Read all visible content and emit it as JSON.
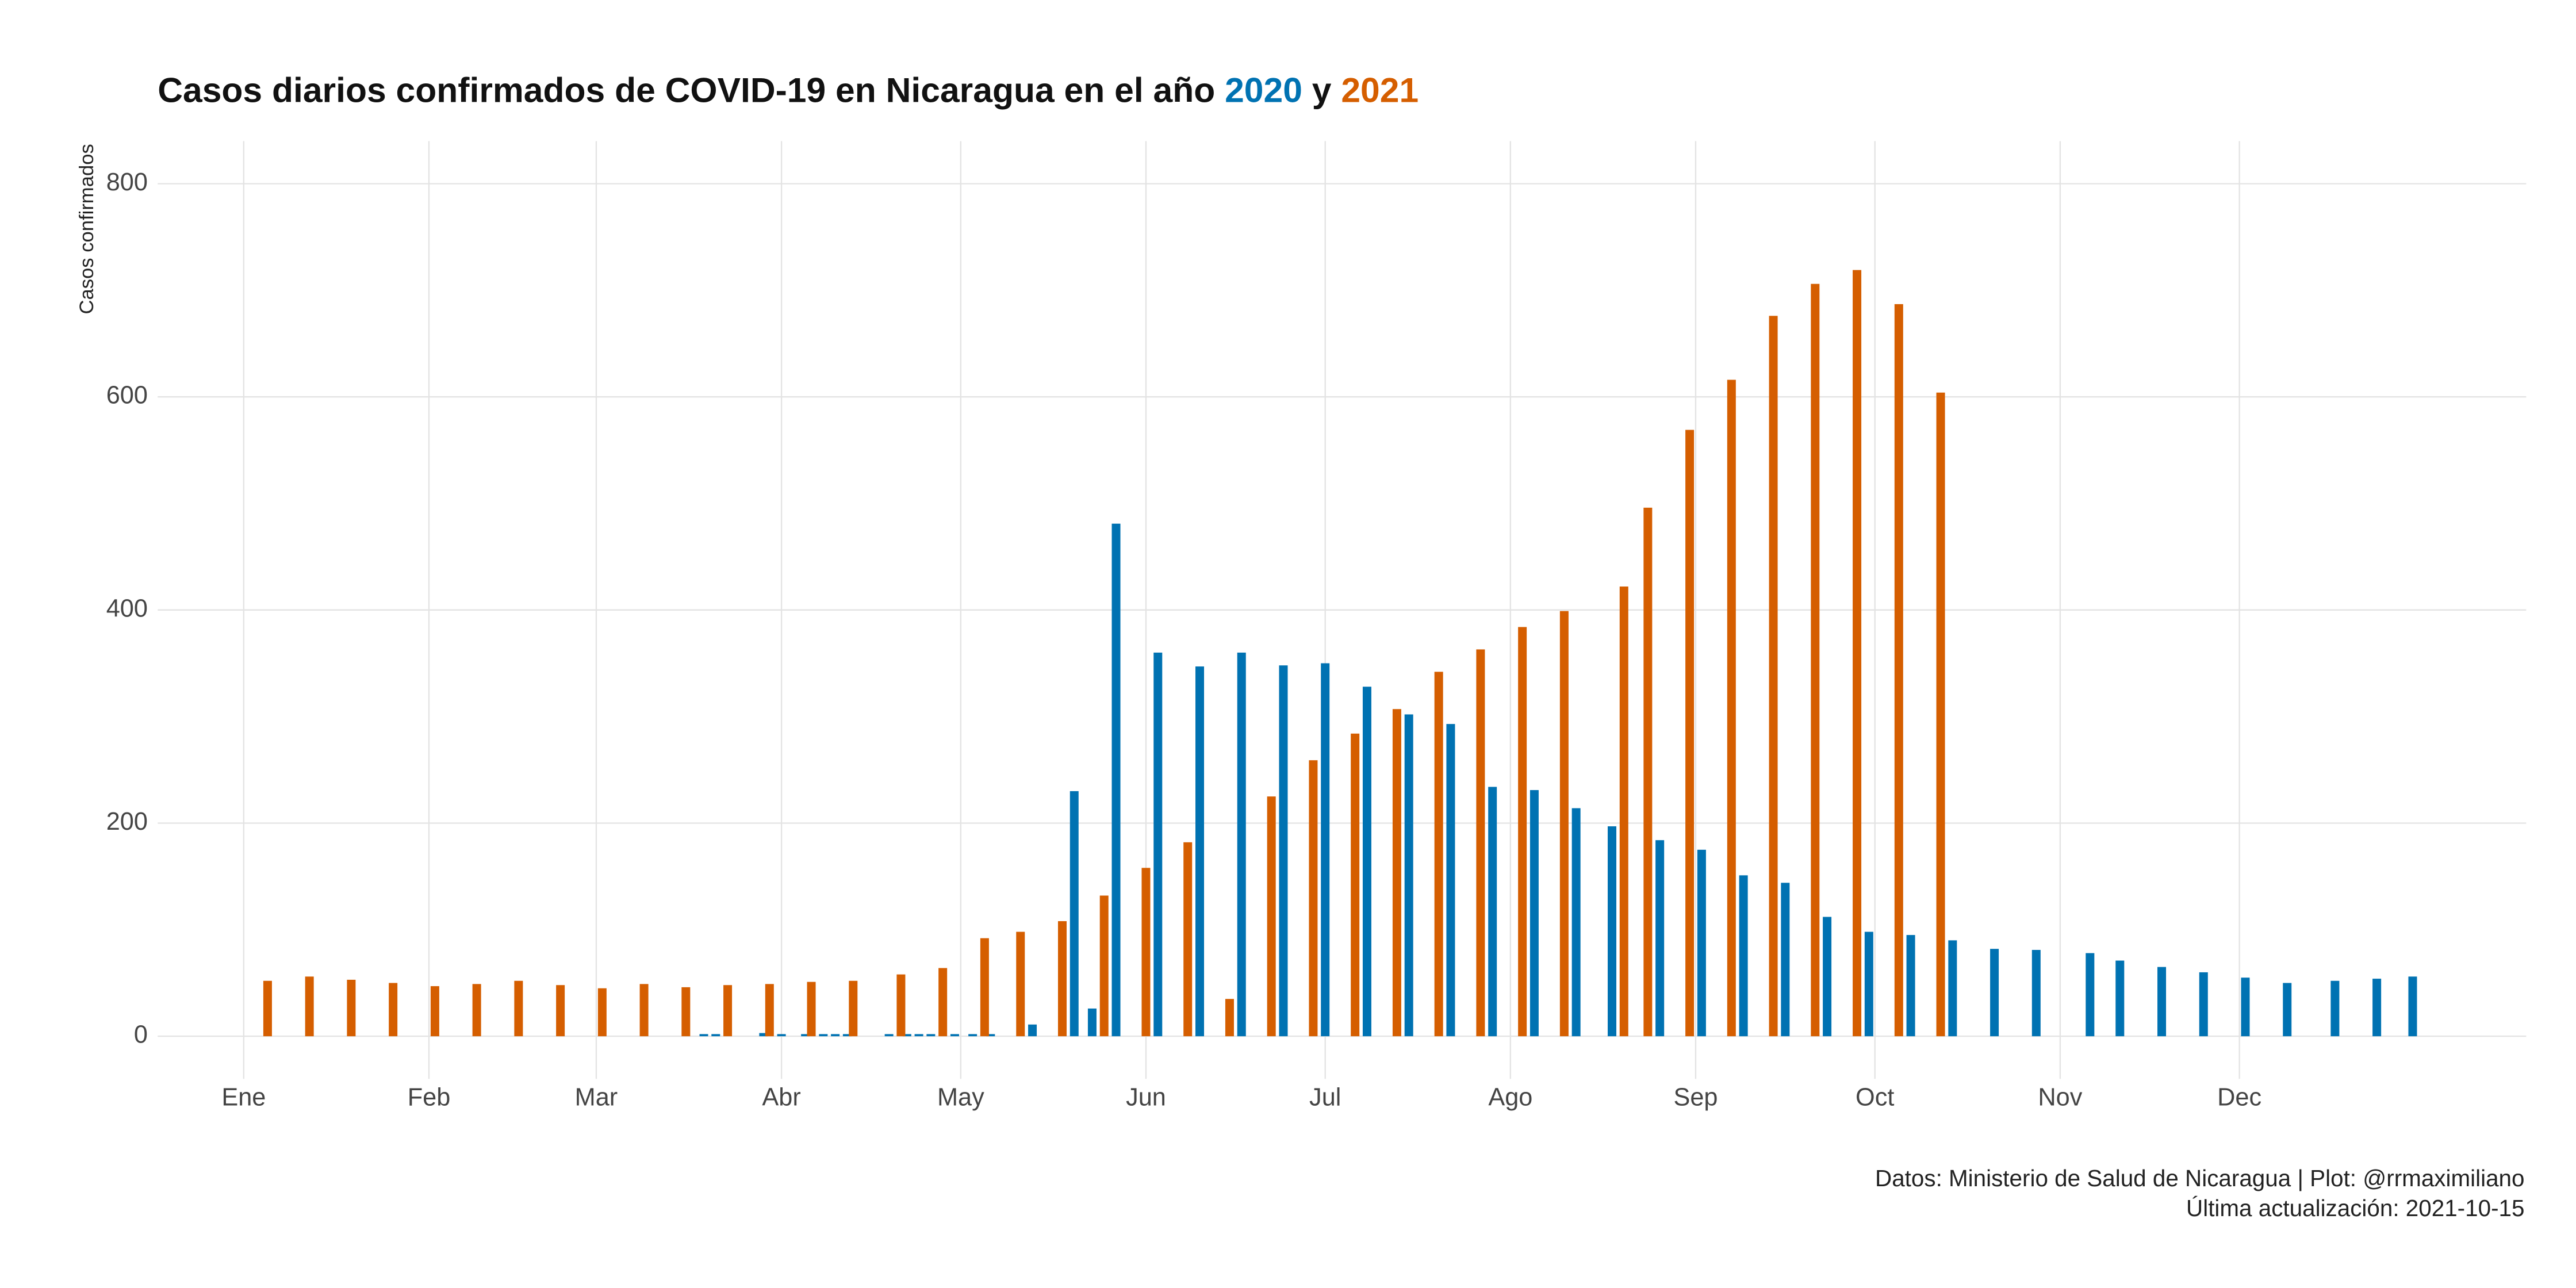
{
  "chart_data": {
    "type": "bar",
    "title": "Casos diarios confirmados de COVID-19 en Nicaragua en el año",
    "title_joiner": "y",
    "ylabel": "Casos confirmados",
    "caption": [
      "Datos: Ministerio de Salud de Nicaragua | Plot: @rrmaximiliano",
      "Última actualización: 2021-10-15"
    ],
    "xlim": [
      -14.4,
      382
    ],
    "xticks": [
      {
        "value": 0,
        "label": "Ene"
      },
      {
        "value": 31,
        "label": "Feb"
      },
      {
        "value": 59,
        "label": "Mar"
      },
      {
        "value": 90,
        "label": "Abr"
      },
      {
        "value": 120,
        "label": "May"
      },
      {
        "value": 151,
        "label": "Jun"
      },
      {
        "value": 181,
        "label": "Jul"
      },
      {
        "value": 212,
        "label": "Ago"
      },
      {
        "value": 243,
        "label": "Sep"
      },
      {
        "value": 273,
        "label": "Oct"
      },
      {
        "value": 304,
        "label": "Nov"
      },
      {
        "value": 334,
        "label": "Dec"
      }
    ],
    "ylim": [
      -40,
      840
    ],
    "yticks": [
      0,
      200,
      400,
      600,
      800
    ],
    "grid": true,
    "series": [
      {
        "name": "2020",
        "color": "#0072b2",
        "x": [
          77,
          79,
          87,
          90,
          94,
          97,
          99,
          101,
          108,
          111,
          113,
          115,
          119,
          122,
          125,
          132,
          139,
          142,
          146,
          153,
          160,
          167,
          174,
          181,
          188,
          195,
          202,
          209,
          216,
          223,
          229,
          237,
          244,
          251,
          258,
          265,
          272,
          279,
          286,
          293,
          300,
          309,
          314,
          321,
          328,
          335,
          342,
          350,
          357,
          363
        ],
        "values": [
          2,
          2,
          3,
          2,
          2,
          2,
          2,
          2,
          2,
          2,
          2,
          2,
          2,
          2,
          2,
          11,
          230,
          26,
          481,
          360,
          347,
          360,
          348,
          350,
          328,
          302,
          293,
          234,
          231,
          214,
          197,
          184,
          175,
          151,
          144,
          112,
          98,
          95,
          90,
          82,
          81,
          78,
          71,
          65,
          60,
          55,
          50,
          52,
          54,
          56
        ]
      },
      {
        "name": "2021",
        "color": "#d55e00",
        "x": [
          4,
          11,
          18,
          25,
          32,
          39,
          46,
          53,
          60,
          67,
          74,
          81,
          88,
          95,
          102,
          110,
          117,
          124,
          130,
          137,
          144,
          151,
          158,
          165,
          172,
          179,
          186,
          193,
          200,
          207,
          214,
          221,
          231,
          235,
          242,
          249,
          256,
          263,
          270,
          277,
          284
        ],
        "values": [
          52,
          56,
          53,
          50,
          47,
          49,
          52,
          48,
          45,
          49,
          46,
          48,
          49,
          51,
          52,
          58,
          64,
          92,
          98,
          108,
          132,
          158,
          182,
          35,
          225,
          259,
          284,
          307,
          342,
          363,
          384,
          399,
          422,
          496,
          569,
          616,
          676,
          706,
          719,
          687,
          604
        ]
      }
    ]
  }
}
